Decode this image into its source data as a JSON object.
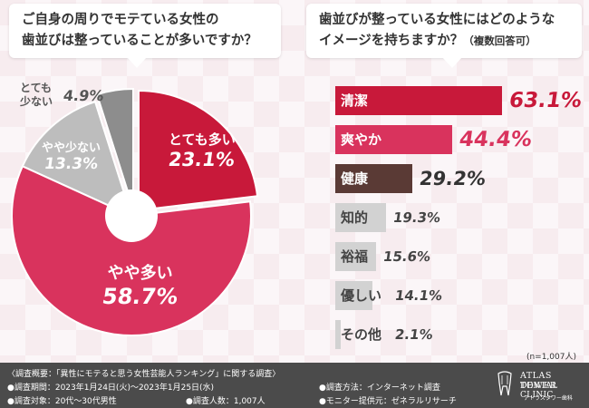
{
  "colors": {
    "red": "#c8193a",
    "pink": "#d9335d",
    "brown": "#5a3a35",
    "gray_bar": "#d2d2d2",
    "pie_gray_light": "#bdbdbd",
    "pie_gray_dark": "#8d8d8d"
  },
  "questions": {
    "q1": [
      "ご自身の周りでモテている女性の",
      "歯並びは整っていることが多いですか？"
    ],
    "q2_line1": "歯並びが整っている女性にはどのような",
    "q2_line2": "イメージを持ちますか？",
    "q2_note": "（複数回答可）"
  },
  "chart_data": [
    {
      "type": "pie",
      "title": "ご自身の周りでモテている女性の歯並びは整っていることが多いですか？",
      "slices": [
        {
          "label": "とても多い",
          "value": 23.1,
          "value_text": "23.1%"
        },
        {
          "label": "やや多い",
          "value": 58.7,
          "value_text": "58.7%"
        },
        {
          "label": "やや少ない",
          "value": 13.3,
          "value_text": "13.3%"
        },
        {
          "label": "とても少ない",
          "label_lines": [
            "とても",
            "少ない"
          ],
          "value": 4.9,
          "value_text": "4.9%"
        }
      ]
    },
    {
      "type": "bar",
      "orientation": "horizontal",
      "title": "歯並びが整っている女性にはどのようなイメージを持ちますか？（複数回答可）",
      "categories": [
        "清潔",
        "爽やか",
        "健康",
        "知的",
        "裕福",
        "優しい",
        "その他"
      ],
      "values": [
        63.1,
        44.4,
        29.2,
        19.3,
        15.6,
        14.1,
        2.1
      ],
      "value_texts": [
        "63.1%",
        "44.4%",
        "29.2%",
        "19.3%",
        "15.6%",
        "14.1%",
        "2.1%"
      ],
      "note": "(n=1,007人)"
    }
  ],
  "footer": {
    "overview": "〈調査概要：「異性にモテると思う女性芸能人ランキング」に関する調査〉",
    "period": "●調査期間：2023年1月24日(火)〜2023年1月25日(水)",
    "target": "●調査対象：20代〜30代男性",
    "count": "●調査人数：1,007人",
    "method": "●調査方法：インターネット調査",
    "provider": "●モニター提供元：ゼネラルリサーチ",
    "logo_line1": "ATLAS TOWER",
    "logo_line2": "DENTAL CLINIC",
    "logo_line3": "アトラスタワー歯科"
  }
}
